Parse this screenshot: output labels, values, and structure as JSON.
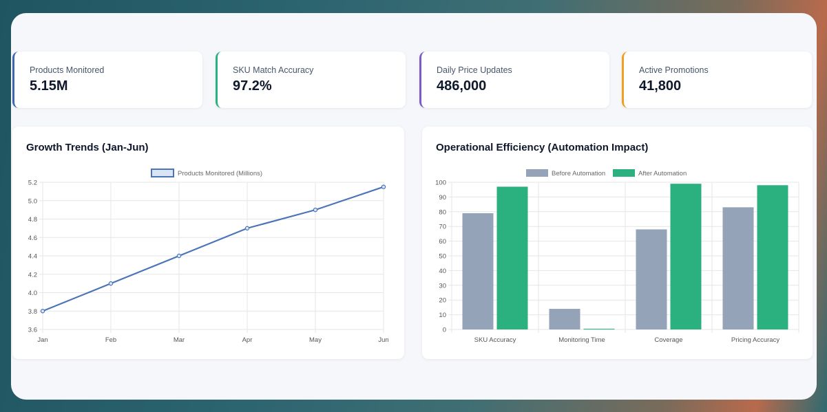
{
  "kpis": [
    {
      "label": "Products Monitored",
      "value": "5.15M",
      "color": "#3b67b0"
    },
    {
      "label": "SKU Match Accuracy",
      "value": "97.2%",
      "color": "#2bb07f"
    },
    {
      "label": "Daily Price Updates",
      "value": "486,000",
      "color": "#7c5cc4"
    },
    {
      "label": "Active Promotions",
      "value": "41,800",
      "color": "#f0a020"
    }
  ],
  "growth": {
    "title": "Growth Trends (Jan-Jun)",
    "chart_data": {
      "type": "line",
      "categories": [
        "Jan",
        "Feb",
        "Mar",
        "Apr",
        "May",
        "Jun"
      ],
      "series": [
        {
          "name": "Products Monitored (Millions)",
          "values": [
            3.8,
            4.1,
            4.4,
            4.7,
            4.9,
            5.15
          ],
          "color": "#4a74b8"
        }
      ],
      "ylim": [
        3.6,
        5.2
      ],
      "yticks": [
        "3.6",
        "3.8",
        "4.0",
        "4.2",
        "4.4",
        "4.6",
        "4.8",
        "5.0",
        "5.2"
      ],
      "grid": true,
      "legend": "top-center"
    }
  },
  "efficiency": {
    "title": "Operational Efficiency (Automation Impact)",
    "chart_data": {
      "type": "bar",
      "categories": [
        "SKU Accuracy",
        "Monitoring Time",
        "Coverage",
        "Pricing Accuracy"
      ],
      "series": [
        {
          "name": "Before Automation",
          "values": [
            79,
            14,
            68,
            83
          ],
          "color": "#94a3b8"
        },
        {
          "name": "After Automation",
          "values": [
            97,
            0.5,
            99,
            98
          ],
          "color": "#2bb07f"
        }
      ],
      "ylim": [
        0,
        100
      ],
      "yticks": [
        "0",
        "10",
        "20",
        "30",
        "40",
        "50",
        "60",
        "70",
        "80",
        "90",
        "100"
      ],
      "grid": true,
      "legend": "top-center"
    }
  }
}
